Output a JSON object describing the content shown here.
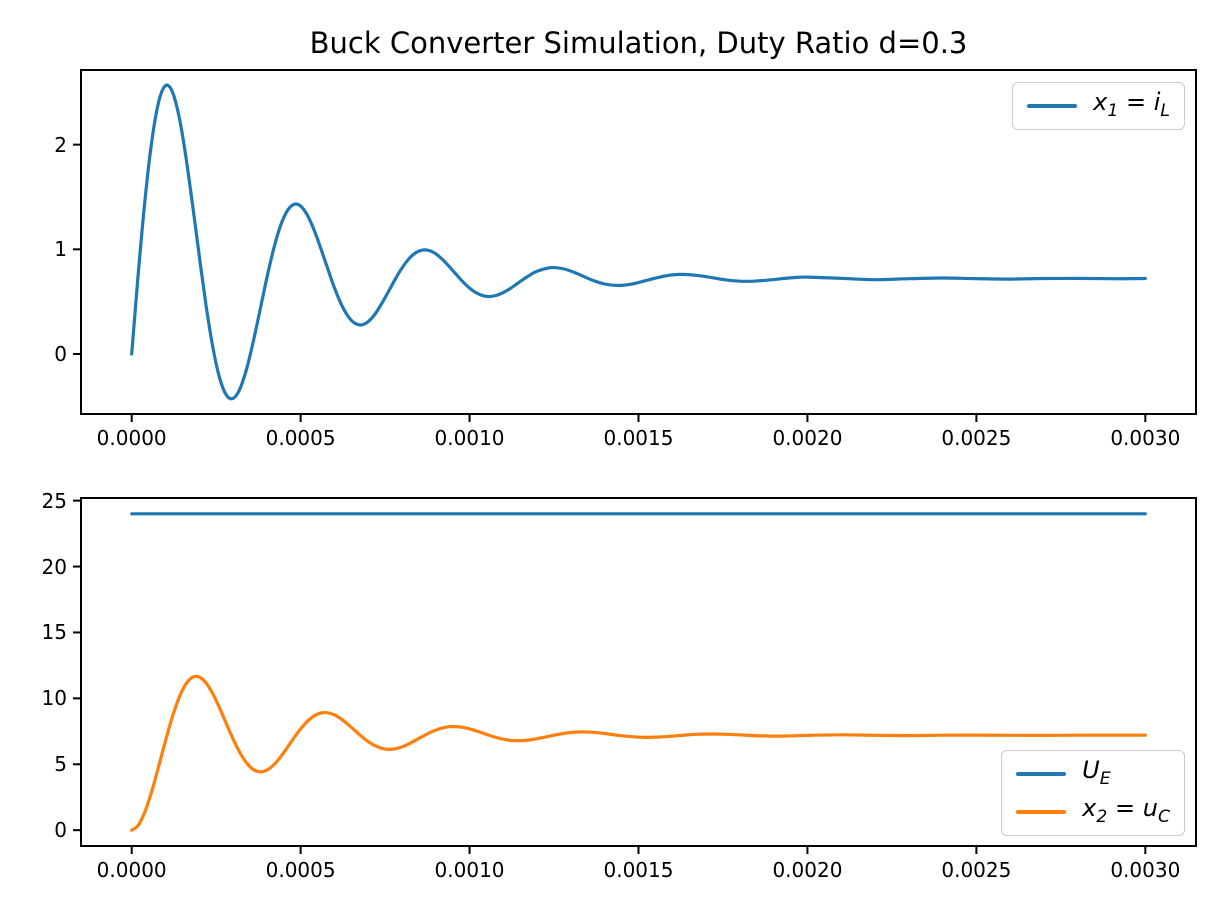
{
  "figure": {
    "background": "#ffffff",
    "title": "Buck Converter Simulation, Duty Ratio d=0.3"
  },
  "chart_data": [
    {
      "type": "line",
      "title": "Buck Converter Simulation, Duty Ratio d=0.3",
      "xlabel": "",
      "ylabel": "",
      "grid": false,
      "xlim": [
        -0.00015,
        0.00315
      ],
      "ylim": [
        -0.573,
        2.713
      ],
      "xticks": {
        "values": [
          0,
          0.0005,
          0.001,
          0.0015,
          0.002,
          0.0025,
          0.003
        ],
        "labels": [
          "0.0000",
          "0.0005",
          "0.0010",
          "0.0015",
          "0.0020",
          "0.0025",
          "0.0030"
        ]
      },
      "yticks": {
        "values": [
          0,
          1,
          2
        ],
        "labels": [
          "0",
          "1",
          "2"
        ]
      },
      "legend": {
        "position": "upper right"
      },
      "x": [
        0.0,
        2e-05,
        4e-05,
        6e-05,
        8e-05,
        0.0001,
        0.00012,
        0.00014,
        0.00016,
        0.00018,
        0.0002,
        0.00022,
        0.00024,
        0.00026,
        0.00028,
        0.0003,
        0.00032,
        0.00034,
        0.00036,
        0.00038,
        0.0004,
        0.00042,
        0.00044,
        0.00046,
        0.00048,
        0.0005,
        0.00052,
        0.00054,
        0.00056,
        0.00058,
        0.0006,
        0.00062,
        0.00064,
        0.00066,
        0.00068,
        0.0007,
        0.00072,
        0.00074,
        0.00076,
        0.00078,
        0.0008,
        0.00082,
        0.00084,
        0.00086,
        0.00088,
        0.0009,
        0.00092,
        0.00094,
        0.00096,
        0.00098,
        0.001,
        0.00102,
        0.00104,
        0.00106,
        0.00108,
        0.0011,
        0.00112,
        0.00114,
        0.00116,
        0.00118,
        0.0012,
        0.00124,
        0.00128,
        0.00132,
        0.00136,
        0.0014,
        0.00144,
        0.00148,
        0.00152,
        0.00156,
        0.0016,
        0.00164,
        0.00168,
        0.00172,
        0.00176,
        0.0018,
        0.00184,
        0.00188,
        0.00192,
        0.00196,
        0.002,
        0.0021,
        0.0022,
        0.0023,
        0.0024,
        0.0025,
        0.0026,
        0.0027,
        0.0028,
        0.0029,
        0.003
      ],
      "series": [
        {
          "name": "x_1 = i_L",
          "color": "#1f77b4",
          "y": [
            0.0,
            0.786,
            1.49,
            2.046,
            2.411,
            2.564,
            2.508,
            2.272,
            1.894,
            1.43,
            0.936,
            0.466,
            0.067,
            -0.225,
            -0.391,
            -0.424,
            -0.335,
            -0.143,
            0.121,
            0.422,
            0.726,
            1.001,
            1.22,
            1.365,
            1.429,
            1.414,
            1.326,
            1.184,
            1.006,
            0.816,
            0.633,
            0.477,
            0.362,
            0.295,
            0.278,
            0.31,
            0.381,
            0.482,
            0.597,
            0.715,
            0.822,
            0.908,
            0.966,
            0.993,
            0.989,
            0.957,
            0.903,
            0.835,
            0.762,
            0.691,
            0.63,
            0.584,
            0.557,
            0.549,
            0.561,
            0.587,
            0.625,
            0.67,
            0.715,
            0.757,
            0.791,
            0.825,
            0.812,
            0.766,
            0.71,
            0.669,
            0.654,
            0.668,
            0.7,
            0.733,
            0.756,
            0.76,
            0.748,
            0.728,
            0.708,
            0.696,
            0.696,
            0.705,
            0.718,
            0.73,
            0.735,
            0.723,
            0.71,
            0.719,
            0.726,
            0.72,
            0.716,
            0.721,
            0.722,
            0.719,
            0.721
          ]
        }
      ]
    },
    {
      "type": "line",
      "title": "",
      "xlabel": "",
      "ylabel": "",
      "grid": false,
      "xlim": [
        -0.00015,
        0.00315
      ],
      "ylim": [
        -1.2,
        25.2
      ],
      "xticks": {
        "values": [
          0,
          0.0005,
          0.001,
          0.0015,
          0.002,
          0.0025,
          0.003
        ],
        "labels": [
          "0.0000",
          "0.0005",
          "0.0010",
          "0.0015",
          "0.0020",
          "0.0025",
          "0.0030"
        ]
      },
      "yticks": {
        "values": [
          0,
          5,
          10,
          15,
          20,
          25
        ],
        "labels": [
          "0",
          "5",
          "10",
          "15",
          "20",
          "25"
        ]
      },
      "legend": {
        "position": "lower right"
      },
      "x": [
        0.0,
        2e-05,
        4e-05,
        6e-05,
        8e-05,
        0.0001,
        0.00012,
        0.00014,
        0.00016,
        0.00018,
        0.0002,
        0.00022,
        0.00024,
        0.00026,
        0.00028,
        0.0003,
        0.00032,
        0.00034,
        0.00036,
        0.00038,
        0.0004,
        0.00042,
        0.00044,
        0.00046,
        0.00048,
        0.0005,
        0.00052,
        0.00054,
        0.00056,
        0.00058,
        0.0006,
        0.00062,
        0.00064,
        0.00066,
        0.00068,
        0.0007,
        0.00072,
        0.00074,
        0.00076,
        0.00078,
        0.0008,
        0.00082,
        0.00084,
        0.00086,
        0.00088,
        0.0009,
        0.00092,
        0.00094,
        0.00096,
        0.00098,
        0.001,
        0.00102,
        0.00104,
        0.00106,
        0.00108,
        0.0011,
        0.00112,
        0.00114,
        0.00116,
        0.00118,
        0.0012,
        0.00124,
        0.00128,
        0.00132,
        0.00136,
        0.0014,
        0.00144,
        0.00148,
        0.00152,
        0.00156,
        0.0016,
        0.00164,
        0.00168,
        0.00172,
        0.00176,
        0.0018,
        0.00184,
        0.00188,
        0.00192,
        0.00196,
        0.002,
        0.0021,
        0.0022,
        0.0023,
        0.0024,
        0.0025,
        0.0026,
        0.0027,
        0.0028,
        0.0029,
        0.003
      ],
      "series": [
        {
          "name": "U_E",
          "color": "#1f77b4",
          "x": [
            0,
            0.003
          ],
          "y": [
            24,
            24
          ]
        },
        {
          "name": "x_2 = u_C",
          "color": "#ff7f0e",
          "y": [
            0.0,
            0.384,
            1.445,
            3.008,
            4.861,
            6.783,
            8.564,
            10.037,
            11.069,
            11.598,
            11.617,
            11.171,
            10.351,
            9.281,
            8.091,
            6.924,
            5.895,
            5.102,
            4.604,
            4.426,
            4.554,
            4.948,
            5.54,
            6.25,
            6.992,
            7.685,
            8.261,
            8.671,
            8.888,
            8.908,
            8.747,
            8.438,
            8.031,
            7.574,
            7.122,
            6.72,
            6.408,
            6.209,
            6.131,
            6.173,
            6.319,
            6.543,
            6.816,
            7.101,
            7.371,
            7.596,
            7.759,
            7.848,
            7.86,
            7.802,
            7.687,
            7.531,
            7.356,
            7.181,
            7.024,
            6.901,
            6.821,
            6.789,
            6.802,
            6.856,
            6.941,
            7.155,
            7.348,
            7.448,
            7.434,
            7.332,
            7.197,
            7.088,
            7.042,
            7.066,
            7.137,
            7.22,
            7.281,
            7.299,
            7.275,
            7.227,
            7.177,
            7.145,
            7.14,
            7.159,
            7.191,
            7.238,
            7.201,
            7.177,
            7.202,
            7.214,
            7.197,
            7.192,
            7.203,
            7.205,
            7.202
          ]
        }
      ]
    }
  ],
  "style": {
    "line_color_blue": "#1f77b4",
    "line_color_orange": "#ff7f0e",
    "axis_color": "#000000",
    "legend_border_color": "#cccccc"
  }
}
